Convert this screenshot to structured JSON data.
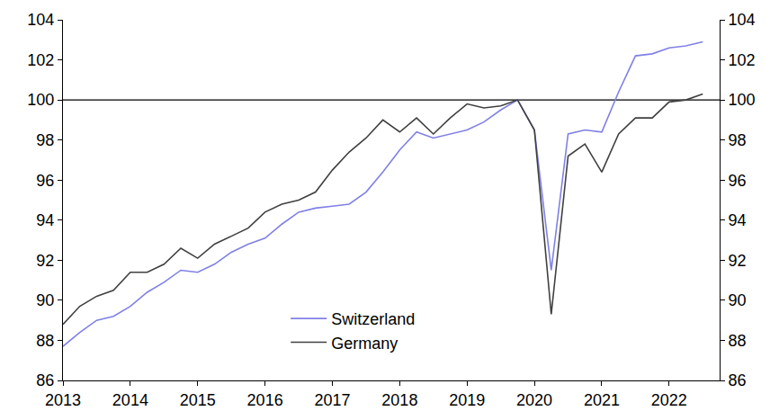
{
  "chart_data": {
    "type": "line",
    "x": [
      2013,
      2013.25,
      2013.5,
      2013.75,
      2014,
      2014.25,
      2014.5,
      2014.75,
      2015,
      2015.25,
      2015.5,
      2015.75,
      2016,
      2016.25,
      2016.5,
      2016.75,
      2017,
      2017.25,
      2017.5,
      2017.75,
      2018,
      2018.25,
      2018.5,
      2018.75,
      2019,
      2019.25,
      2019.5,
      2019.75,
      2020,
      2020.25,
      2020.5,
      2020.75,
      2021,
      2021.25,
      2021.5,
      2021.75,
      2022,
      2022.25,
      2022.5
    ],
    "series": [
      {
        "name": "Switzerland",
        "color": "#8080e6",
        "values": [
          87.7,
          88.4,
          89.0,
          89.2,
          89.7,
          90.4,
          90.9,
          91.5,
          91.4,
          91.8,
          92.4,
          92.8,
          93.1,
          93.8,
          94.4,
          94.6,
          94.7,
          94.8,
          95.4,
          96.4,
          97.5,
          98.4,
          98.1,
          98.3,
          98.5,
          98.9,
          99.5,
          100.0,
          98.5,
          91.5,
          98.3,
          98.5,
          98.4,
          100.4,
          102.2,
          102.3,
          102.6,
          102.7,
          102.9
        ]
      },
      {
        "name": "Germany",
        "color": "#404040",
        "values": [
          88.8,
          89.7,
          90.2,
          90.5,
          91.4,
          91.4,
          91.8,
          92.6,
          92.1,
          92.8,
          93.2,
          93.6,
          94.4,
          94.8,
          95.0,
          95.4,
          96.5,
          97.4,
          98.1,
          99.0,
          98.4,
          99.1,
          98.3,
          99.1,
          99.8,
          99.6,
          99.7,
          100.0,
          98.5,
          89.3,
          97.2,
          97.8,
          96.4,
          98.3,
          99.1,
          99.1,
          99.9,
          100.0,
          100.3
        ]
      }
    ],
    "xlim": [
      2013,
      2022.75
    ],
    "xticks": [
      2013,
      2014,
      2015,
      2016,
      2017,
      2018,
      2019,
      2020,
      2021,
      2022
    ],
    "ylim": [
      86,
      104
    ],
    "yticks": [
      86,
      88,
      90,
      92,
      94,
      96,
      98,
      100,
      102,
      104
    ],
    "y2lim": [
      86,
      104
    ],
    "y2ticks": [
      86,
      88,
      90,
      92,
      94,
      96,
      98,
      100,
      102,
      104
    ],
    "hline": 100,
    "grid": false,
    "legend": "lower center"
  }
}
